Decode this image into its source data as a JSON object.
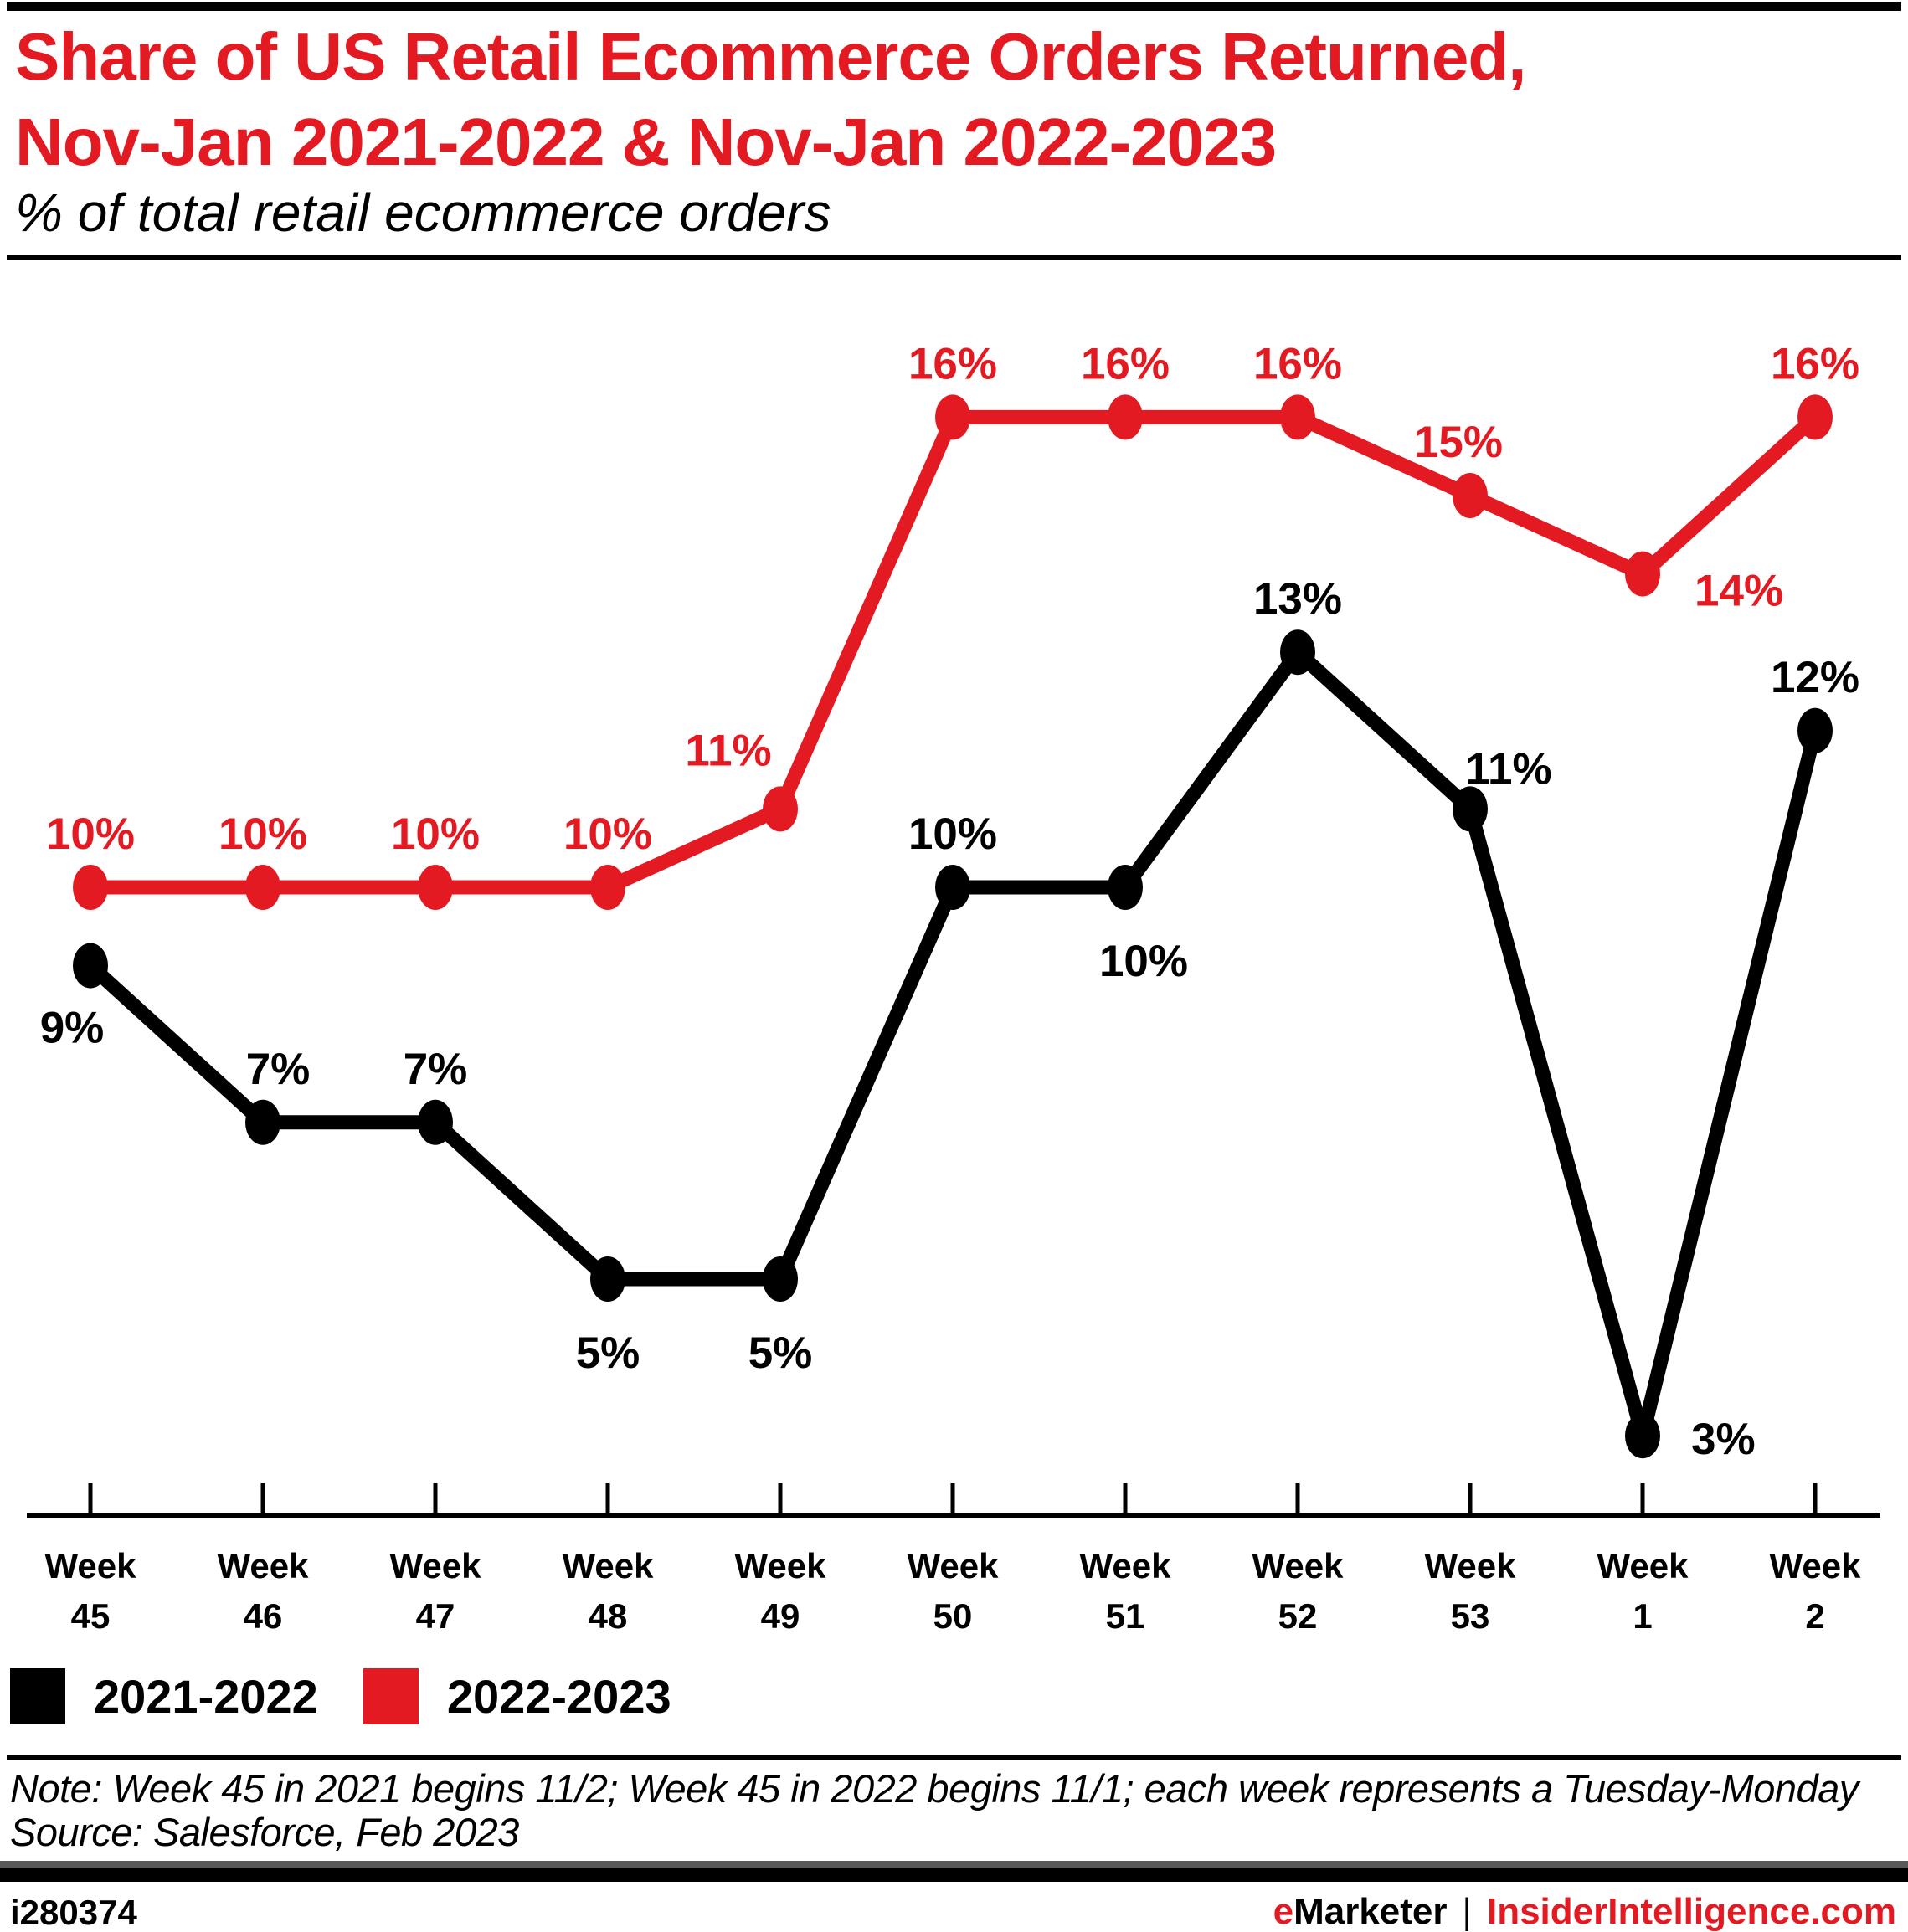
{
  "header": {
    "title_line1": "Share of US Retail Ecommerce Orders Returned,",
    "title_line2": "Nov-Jan 2021-2022 & Nov-Jan 2022-2023",
    "subtitle": "% of total retail ecommerce orders"
  },
  "colors": {
    "accent_red": "#e31a22",
    "black": "#000000",
    "bar_gray": "#58595b"
  },
  "chart_data": {
    "type": "line",
    "title": "Share of US Retail Ecommerce Orders Returned, Nov-Jan 2021-2022 & Nov-Jan 2022-2023",
    "subtitle": "% of total retail ecommerce orders",
    "categories": [
      "Week 45",
      "Week 46",
      "Week 47",
      "Week 48",
      "Week 49",
      "Week 50",
      "Week 51",
      "Week 52",
      "Week 53",
      "Week 1",
      "Week 2"
    ],
    "series": [
      {
        "name": "2021-2022",
        "color": "#000000",
        "values": [
          9,
          7,
          7,
          5,
          5,
          10,
          10,
          13,
          11,
          3,
          12
        ],
        "labels": [
          "9%",
          "7%",
          "7%",
          "5%",
          "5%",
          "10%",
          "10%",
          "13%",
          "11%",
          "3%",
          "12%"
        ],
        "label_offsets": [
          [
            -22,
            92
          ],
          [
            18,
            -46
          ],
          [
            0,
            -46
          ],
          [
            0,
            106
          ],
          [
            0,
            106
          ],
          [
            0,
            -46
          ],
          [
            22,
            106
          ],
          [
            0,
            -46
          ],
          [
            46,
            -30
          ],
          [
            58,
            22,
            "start"
          ],
          [
            0,
            -46
          ]
        ]
      },
      {
        "name": "2022-2023",
        "color": "#e31a22",
        "values": [
          10,
          10,
          10,
          10,
          11,
          16,
          16,
          16,
          15,
          14,
          16
        ],
        "labels": [
          "10%",
          "10%",
          "10%",
          "10%",
          "11%",
          "16%",
          "16%",
          "16%",
          "15%",
          "14%",
          "16%"
        ],
        "label_offsets": [
          [
            0,
            -46
          ],
          [
            0,
            -46
          ],
          [
            0,
            -46
          ],
          [
            0,
            -46
          ],
          [
            -62,
            -52
          ],
          [
            0,
            -46
          ],
          [
            0,
            -46
          ],
          [
            0,
            -46
          ],
          [
            -14,
            -46
          ],
          [
            62,
            38,
            "start"
          ],
          [
            0,
            -46
          ]
        ]
      }
    ],
    "xlabel": "",
    "ylabel": "",
    "ylim": [
      0,
      18
    ],
    "grid": false,
    "legend_position": "bottom-left",
    "marker": "ellipse"
  },
  "legend": {
    "items": [
      {
        "label": "2021-2022",
        "color": "#000000"
      },
      {
        "label": "2022-2023",
        "color": "#e31a22"
      }
    ]
  },
  "note": {
    "line1": "Note: Week 45 in 2021 begins 11/2; Week 45 in 2022 begins 11/1; each week represents a Tuesday-Monday",
    "line2": "Source: Salesforce, Feb 2023"
  },
  "footer": {
    "chart_id": "i280374",
    "brand_e": "e",
    "brand_marketer": "Marketer",
    "separator": "|",
    "brand_site": "InsiderIntelligence.com"
  }
}
